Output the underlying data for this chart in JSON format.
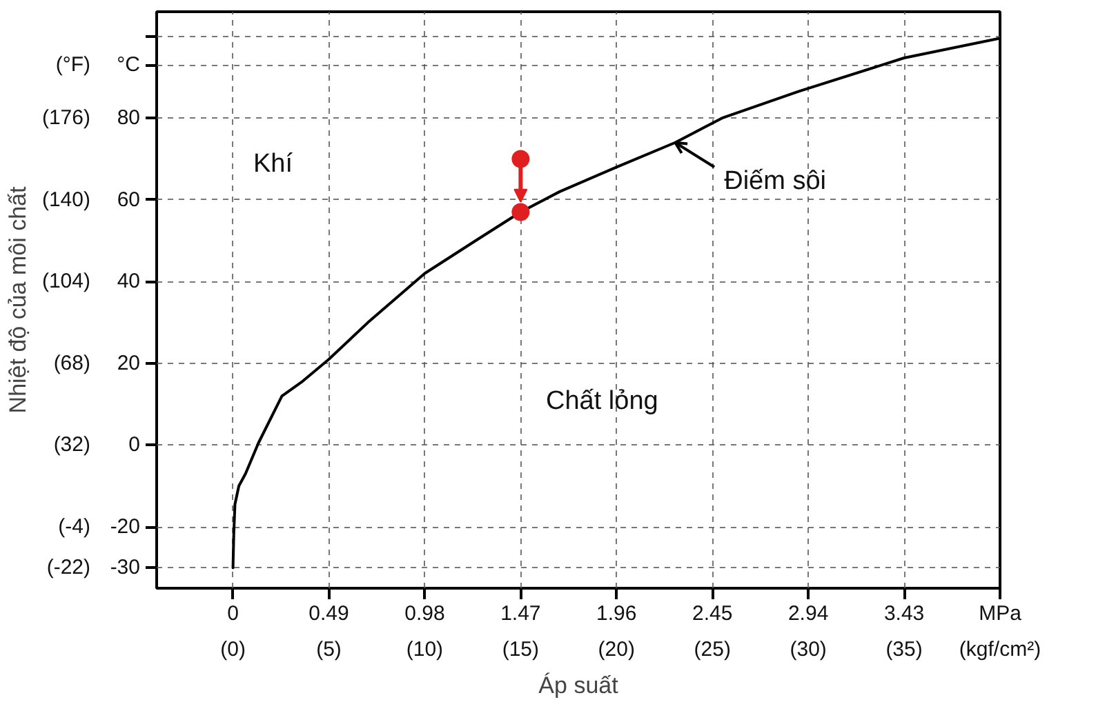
{
  "chart_data": {
    "type": "line",
    "xlabel": "Áp suất",
    "y2label": "Nhiệt độ của môi chất",
    "annotations": [
      "Khí",
      "Chất lỏng",
      {
        "text": "Điếm sôi",
        "x": 2.26,
        "y": 74
      }
    ],
    "series": [
      {
        "color": "#000000",
        "x": [
          0,
          0.004,
          0.01,
          0.03,
          0.064,
          0.13,
          0.25,
          0.35,
          0.49,
          0.69,
          0.98,
          1.24,
          1.47,
          1.67,
          1.96,
          2.26,
          2.5,
          2.89,
          3.43,
          3.92
        ],
        "values": [
          -30,
          -22,
          -14.5,
          -10,
          -7,
          0.5,
          12,
          15.4,
          21,
          30,
          42,
          50,
          57,
          62,
          68,
          74,
          80,
          86.5,
          94.7,
          99.5
        ]
      },
      {
        "type": "scatter",
        "color": "#e02020",
        "x": [
          1.47,
          1.47
        ],
        "values": [
          70,
          57
        ]
      }
    ],
    "xlim": [
      -0.39,
      3.92
    ],
    "xticks": [
      0,
      0.49,
      0.98,
      1.47,
      1.96,
      2.45,
      2.94,
      3.43,
      {
        "value": 3.92,
        "label": "MPa"
      }
    ],
    "x2lim": [
      -3.98,
      40
    ],
    "x2ticks": [
      {
        "value": 0,
        "label": "(0)"
      },
      {
        "value": 5,
        "label": "(5)"
      },
      {
        "value": 10,
        "label": "(10)"
      },
      {
        "value": 15,
        "label": "(15)"
      },
      {
        "value": 20,
        "label": "(20)"
      },
      {
        "value": 25,
        "label": "(25)"
      },
      {
        "value": 30,
        "label": "(30)"
      },
      {
        "value": 35,
        "label": "(35)"
      },
      {
        "value": 40,
        "label": "(kgf/cm²)"
      }
    ],
    "ylim": [
      -35,
      106
    ],
    "yticks": [
      -30,
      -20,
      0,
      20,
      40,
      60,
      80,
      {
        "value": 93,
        "label": "°C"
      },
      {
        "value": 100,
        "label": null
      }
    ],
    "y2lim": [
      -31,
      222.8
    ],
    "y2ticks": [
      {
        "value": -22,
        "label": "(-22)"
      },
      {
        "value": -4,
        "label": "(-4)"
      },
      {
        "value": 32,
        "label": "(32)"
      },
      {
        "value": 68,
        "label": "(68)"
      },
      {
        "value": 104,
        "label": "(104)"
      },
      {
        "value": 140,
        "label": "(140)"
      },
      {
        "value": 176,
        "label": "(176)"
      },
      {
        "value": 199.4,
        "label": "(°F)"
      }
    ],
    "grid": true,
    "line_style": "solid"
  }
}
